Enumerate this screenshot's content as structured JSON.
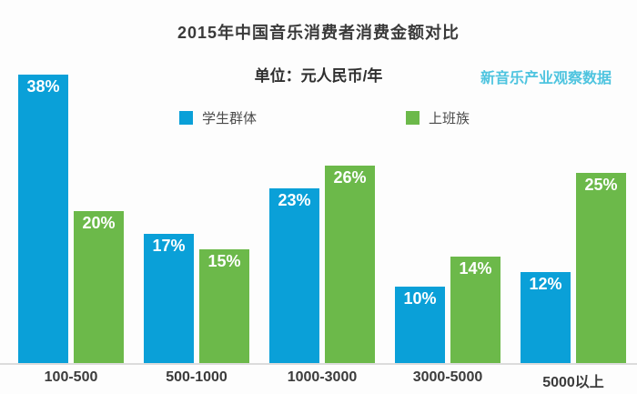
{
  "title": "2015年中国音乐消费者消费金额对比",
  "subtitle": "单位：元人民币/年",
  "source": "新音乐产业观察数据",
  "colors": {
    "students_bar": "#0aa0d8",
    "workers_bar": "#6cb94a",
    "source_text": "#4ec4df",
    "axis_line": "#dcdcdc",
    "title_text": "#3a3a3a",
    "bar_value_text": "#ffffff"
  },
  "legend": [
    {
      "label": "学生群体",
      "color": "#0aa0d8"
    },
    {
      "label": "上班族",
      "color": "#6cb94a"
    }
  ],
  "chart_data": {
    "type": "bar",
    "categories": [
      "100-500",
      "500-1000",
      "1000-3000",
      "3000-5000",
      "5000以上"
    ],
    "series": [
      {
        "name": "学生群体",
        "color": "#0aa0d8",
        "values": [
          38,
          17,
          23,
          10,
          12
        ]
      },
      {
        "name": "上班族",
        "color": "#6cb94a",
        "values": [
          20,
          15,
          26,
          14,
          25
        ]
      }
    ],
    "value_suffix": "%",
    "title": "2015年中国音乐消费者消费金额对比",
    "unit_label": "单位：元人民币/年",
    "source_label": "新音乐产业观察数据",
    "ylim": [
      0,
      40
    ],
    "grid": false,
    "legend_position": "top",
    "value_labels": "inside-top"
  }
}
